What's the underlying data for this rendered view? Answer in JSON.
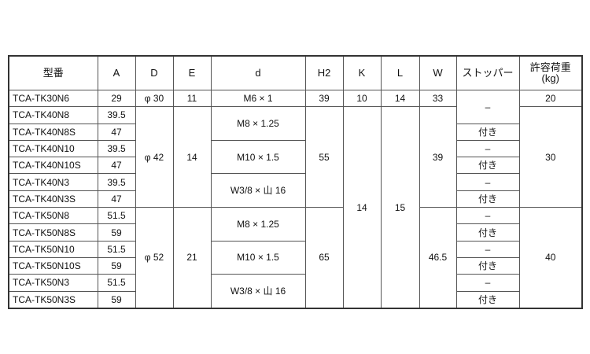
{
  "headers": {
    "model": "型番",
    "A": "A",
    "D": "D",
    "E": "E",
    "d": "d",
    "H2": "H2",
    "K": "K",
    "L": "L",
    "W": "W",
    "stopper": "ストッパー",
    "load": "許容荷重",
    "load_unit": "(kg)"
  },
  "rows": [
    {
      "model": "TCA-TK30N6",
      "A": "29"
    },
    {
      "model": "TCA-TK40N8",
      "A": "39.5"
    },
    {
      "model": "TCA-TK40N8S",
      "A": "47"
    },
    {
      "model": "TCA-TK40N10",
      "A": "39.5"
    },
    {
      "model": "TCA-TK40N10S",
      "A": "47"
    },
    {
      "model": "TCA-TK40N3",
      "A": "39.5"
    },
    {
      "model": "TCA-TK40N3S",
      "A": "47"
    },
    {
      "model": "TCA-TK50N8",
      "A": "51.5"
    },
    {
      "model": "TCA-TK50N8S",
      "A": "59"
    },
    {
      "model": "TCA-TK50N10",
      "A": "51.5"
    },
    {
      "model": "TCA-TK50N10S",
      "A": "59"
    },
    {
      "model": "TCA-TK50N3",
      "A": "51.5"
    },
    {
      "model": "TCA-TK50N3S",
      "A": "59"
    }
  ],
  "D": [
    "φ 30",
    "φ 42",
    "φ 52"
  ],
  "E": [
    "11",
    "14",
    "21"
  ],
  "d": [
    "M6 × 1",
    "M8 × 1.25",
    "M10 × 1.5",
    "W3/8 × 山 16",
    "M8 × 1.25",
    "M10 × 1.5",
    "W3/8 × 山 16"
  ],
  "H2": [
    "39",
    "55",
    "65"
  ],
  "K": [
    "10",
    "14"
  ],
  "L": [
    "14",
    "15"
  ],
  "W": [
    "33",
    "39",
    "46.5"
  ],
  "stopper": [
    "–",
    "付き",
    "–",
    "付き",
    "–",
    "付き",
    "–",
    "付き",
    "–",
    "付き",
    "–",
    "付き"
  ],
  "load": [
    "20",
    "30",
    "40"
  ]
}
